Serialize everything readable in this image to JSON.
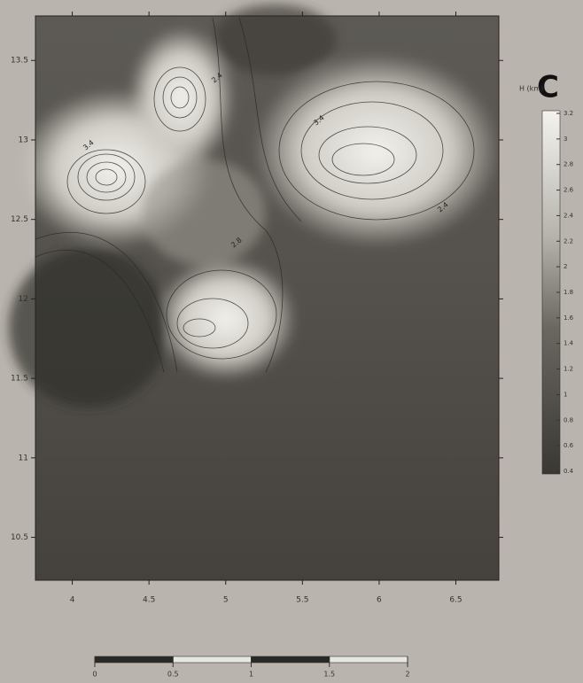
{
  "chart_data": {
    "type": "contour",
    "panel_label": "C",
    "colorbar_label": "H (km)",
    "xlim": [
      3.76,
      6.78
    ],
    "xticks": [
      4,
      4.5,
      5,
      5.5,
      6,
      6.5
    ],
    "ylim": [
      10.23,
      13.78
    ],
    "yticks": [
      10.5,
      11,
      11.5,
      12,
      12.5,
      13,
      13.5
    ],
    "clim": [
      0.4,
      3.2
    ],
    "cticks": [
      3.2,
      3,
      2.8,
      2.6,
      2.4,
      2.2,
      2,
      1.8,
      1.6,
      1.4,
      1.2,
      1,
      0.8,
      0.6,
      0.4
    ],
    "contour_labels": [
      "3.4",
      "2.4",
      "3.4",
      "2.4",
      "2.8"
    ],
    "scalebar_ticks": [
      0,
      0.5,
      1,
      1.5,
      2
    ]
  }
}
